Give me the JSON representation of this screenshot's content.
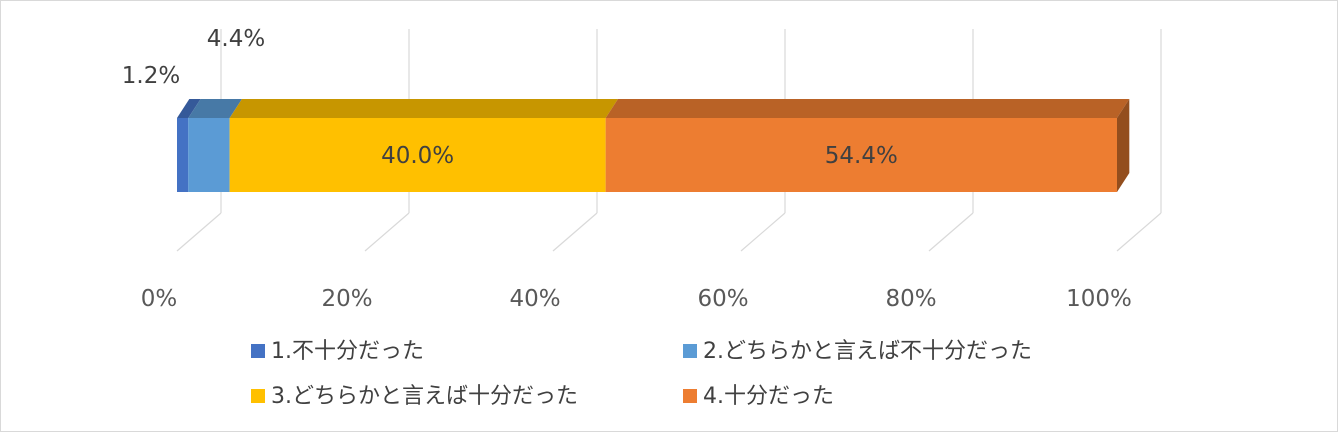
{
  "chart_data": {
    "type": "bar",
    "orientation": "horizontal",
    "stacking": "percent",
    "style": "3d",
    "series": [
      {
        "name": "1.不十分だった",
        "values": [
          1.2
        ],
        "color": "#4472C4",
        "label": "1.2%"
      },
      {
        "name": "2.どちらかと言えば不十分だった",
        "values": [
          4.4
        ],
        "color": "#5B9BD5",
        "label": "4.4%"
      },
      {
        "name": "3.どちらかと言えば十分だった",
        "values": [
          40.0
        ],
        "color": "#FFC000",
        "label": "40.0%"
      },
      {
        "name": "4.十分だった",
        "values": [
          54.4
        ],
        "color": "#ED7D31",
        "label": "54.4%"
      }
    ],
    "xlim": [
      0,
      100
    ],
    "ticks": [
      "0%",
      "20%",
      "40%",
      "60%",
      "80%",
      "100%"
    ],
    "grid": true,
    "legend_position": "bottom"
  }
}
